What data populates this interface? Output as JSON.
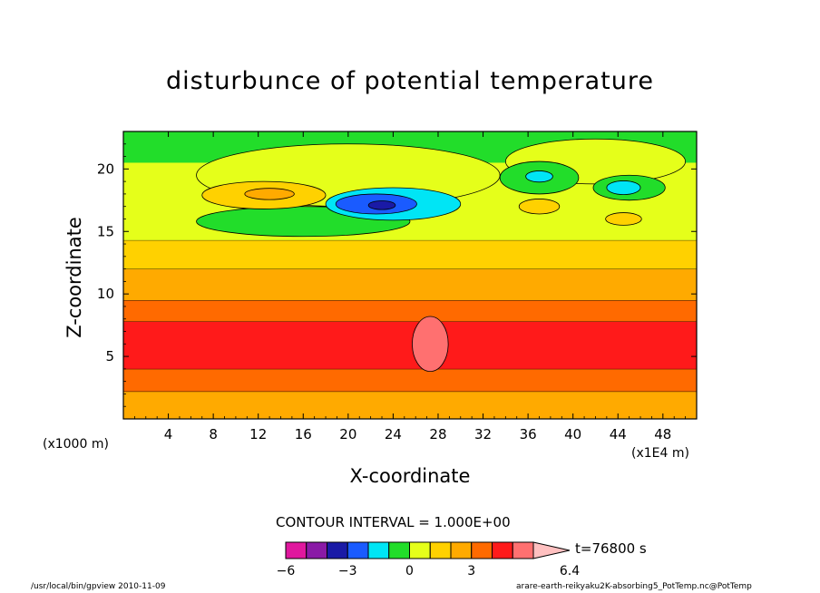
{
  "chart_data": {
    "type": "heatmap",
    "title": "disturbunce of potential temperature",
    "xlabel": "X-coordinate",
    "ylabel": "Z-coordinate",
    "x_unit_left": "(x1000 m)",
    "x_unit_right": "(x1E4 m)",
    "xlim": [
      0,
      51
    ],
    "ylim": [
      0,
      23
    ],
    "x_ticks": [
      4,
      8,
      12,
      16,
      20,
      24,
      28,
      32,
      36,
      40,
      44,
      48
    ],
    "y_ticks": [
      5,
      10,
      15,
      20
    ],
    "contour_interval_text": "CONTOUR INTERVAL = 1.000E+00",
    "time_text": "t=76800 s",
    "colorbar": {
      "levels": [
        -6,
        -5,
        -4,
        -3,
        -2,
        -1,
        0,
        1,
        2,
        3,
        4,
        5,
        6,
        6.4
      ],
      "tick_labels": [
        "−6",
        "−3",
        "0",
        "3",
        "6.4"
      ],
      "tick_values": [
        -6,
        -3,
        0,
        3,
        6.4
      ],
      "colors": [
        "#e0179e",
        "#8a1aa6",
        "#1a1aa6",
        "#1a5bff",
        "#00e5f5",
        "#22dd2a",
        "#e5ff1a",
        "#ffd100",
        "#ffaa00",
        "#ff6a00",
        "#ff1a1a",
        "#ff7070",
        "#ffc0c0"
      ]
    },
    "bands": [
      {
        "level": 2,
        "z_bottom": 0,
        "z_top": 2.2
      },
      {
        "level": 3,
        "z_bottom": 2.2,
        "z_top": 4.0
      },
      {
        "level": 4,
        "z_bottom": 4.0,
        "z_top": 7.8
      },
      {
        "level": 3,
        "z_bottom": 7.8,
        "z_top": 9.5
      },
      {
        "level": 2,
        "z_bottom": 9.5,
        "z_top": 12.0
      },
      {
        "level": 1,
        "z_bottom": 12.0,
        "z_top": 14.3
      },
      {
        "level": 0,
        "z_bottom": 14.3,
        "z_top": 23
      }
    ],
    "features": [
      {
        "level": -1,
        "x": [
          6,
          20
        ],
        "z": [
          15.0,
          16.6
        ],
        "cx": 16,
        "cz": 15.8,
        "rx": 9.5,
        "rz": 1.2
      },
      {
        "level": -2,
        "x": [
          18,
          29
        ],
        "z": [
          16.0,
          18.5
        ],
        "cx": 24,
        "cz": 17.2,
        "rx": 6,
        "rz": 1.3
      },
      {
        "level": -3,
        "x": [
          19,
          26
        ],
        "z": [
          16.4,
          18.2
        ],
        "cx": 22.5,
        "cz": 17.2,
        "rx": 3.6,
        "rz": 0.8
      },
      {
        "level": -4,
        "x": [
          22,
          24
        ],
        "z": [
          16.8,
          17.4
        ],
        "cx": 23,
        "cz": 17.1,
        "rx": 1.2,
        "rz": 0.35
      },
      {
        "level": 1,
        "x": [
          6,
          16
        ],
        "z": [
          16.5,
          19.2
        ],
        "cx": 12.5,
        "cz": 17.9,
        "rx": 5.5,
        "rz": 1.1
      },
      {
        "level": 2,
        "x": [
          11,
          15
        ],
        "z": [
          17.5,
          18.5
        ],
        "cx": 13,
        "cz": 18.0,
        "rx": 2.2,
        "rz": 0.45
      },
      {
        "level": -1,
        "x": [
          34,
          40
        ],
        "z": [
          18,
          20.5
        ],
        "cx": 37,
        "cz": 19.3,
        "rx": 3.5,
        "rz": 1.3
      },
      {
        "level": -2,
        "x": [
          36,
          38
        ],
        "z": [
          19,
          19.8
        ],
        "cx": 37,
        "cz": 19.4,
        "rx": 1.2,
        "rz": 0.45
      },
      {
        "level": -1,
        "x": [
          42,
          48
        ],
        "z": [
          17.5,
          19.8
        ],
        "cx": 45,
        "cz": 18.5,
        "rx": 3.2,
        "rz": 1.0
      },
      {
        "level": -2,
        "x": [
          43,
          46
        ],
        "z": [
          18,
          19
        ],
        "cx": 44.5,
        "cz": 18.5,
        "rx": 1.5,
        "rz": 0.55
      },
      {
        "level": 1,
        "x": [
          35,
          39
        ],
        "z": [
          16.5,
          17.5
        ],
        "cx": 37,
        "cz": 17.0,
        "rx": 1.8,
        "rz": 0.6
      },
      {
        "level": 1,
        "x": [
          43,
          46
        ],
        "z": [
          15.5,
          16.6
        ],
        "cx": 44.5,
        "cz": 16.0,
        "rx": 1.6,
        "rz": 0.5
      },
      {
        "level": 5,
        "x": [
          26,
          30
        ],
        "z": [
          4.0,
          8.0
        ],
        "cx": 27.3,
        "cz": 6.0,
        "rx": 1.6,
        "rz": 2.2
      }
    ]
  },
  "footer": {
    "left": "/usr/local/bin/gpview  2010-11-09",
    "right": "arare-earth-reikyaku2K-absorbing5_PotTemp.nc@PotTemp"
  }
}
